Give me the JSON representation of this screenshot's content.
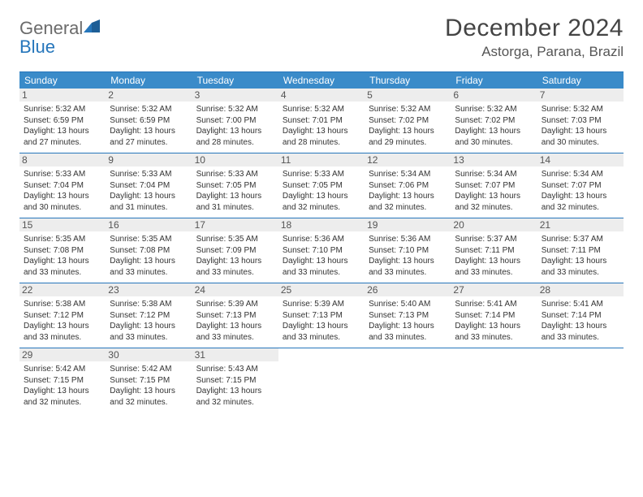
{
  "brand": {
    "word1": "General",
    "word2": "Blue"
  },
  "title": "December 2024",
  "location": "Astorga, Parana, Brazil",
  "colors": {
    "header_bg": "#3a8bc9",
    "border": "#2676bb",
    "daynum_bg": "#ededed",
    "text": "#333333",
    "logo_gray": "#6b6b6b",
    "logo_blue": "#2676bb"
  },
  "weekdays": [
    "Sunday",
    "Monday",
    "Tuesday",
    "Wednesday",
    "Thursday",
    "Friday",
    "Saturday"
  ],
  "weeks": [
    [
      {
        "n": "1",
        "sr": "5:32 AM",
        "ss": "6:59 PM",
        "dl": "13 hours and 27 minutes."
      },
      {
        "n": "2",
        "sr": "5:32 AM",
        "ss": "6:59 PM",
        "dl": "13 hours and 27 minutes."
      },
      {
        "n": "3",
        "sr": "5:32 AM",
        "ss": "7:00 PM",
        "dl": "13 hours and 28 minutes."
      },
      {
        "n": "4",
        "sr": "5:32 AM",
        "ss": "7:01 PM",
        "dl": "13 hours and 28 minutes."
      },
      {
        "n": "5",
        "sr": "5:32 AM",
        "ss": "7:02 PM",
        "dl": "13 hours and 29 minutes."
      },
      {
        "n": "6",
        "sr": "5:32 AM",
        "ss": "7:02 PM",
        "dl": "13 hours and 30 minutes."
      },
      {
        "n": "7",
        "sr": "5:32 AM",
        "ss": "7:03 PM",
        "dl": "13 hours and 30 minutes."
      }
    ],
    [
      {
        "n": "8",
        "sr": "5:33 AM",
        "ss": "7:04 PM",
        "dl": "13 hours and 30 minutes."
      },
      {
        "n": "9",
        "sr": "5:33 AM",
        "ss": "7:04 PM",
        "dl": "13 hours and 31 minutes."
      },
      {
        "n": "10",
        "sr": "5:33 AM",
        "ss": "7:05 PM",
        "dl": "13 hours and 31 minutes."
      },
      {
        "n": "11",
        "sr": "5:33 AM",
        "ss": "7:05 PM",
        "dl": "13 hours and 32 minutes."
      },
      {
        "n": "12",
        "sr": "5:34 AM",
        "ss": "7:06 PM",
        "dl": "13 hours and 32 minutes."
      },
      {
        "n": "13",
        "sr": "5:34 AM",
        "ss": "7:07 PM",
        "dl": "13 hours and 32 minutes."
      },
      {
        "n": "14",
        "sr": "5:34 AM",
        "ss": "7:07 PM",
        "dl": "13 hours and 32 minutes."
      }
    ],
    [
      {
        "n": "15",
        "sr": "5:35 AM",
        "ss": "7:08 PM",
        "dl": "13 hours and 33 minutes."
      },
      {
        "n": "16",
        "sr": "5:35 AM",
        "ss": "7:08 PM",
        "dl": "13 hours and 33 minutes."
      },
      {
        "n": "17",
        "sr": "5:35 AM",
        "ss": "7:09 PM",
        "dl": "13 hours and 33 minutes."
      },
      {
        "n": "18",
        "sr": "5:36 AM",
        "ss": "7:10 PM",
        "dl": "13 hours and 33 minutes."
      },
      {
        "n": "19",
        "sr": "5:36 AM",
        "ss": "7:10 PM",
        "dl": "13 hours and 33 minutes."
      },
      {
        "n": "20",
        "sr": "5:37 AM",
        "ss": "7:11 PM",
        "dl": "13 hours and 33 minutes."
      },
      {
        "n": "21",
        "sr": "5:37 AM",
        "ss": "7:11 PM",
        "dl": "13 hours and 33 minutes."
      }
    ],
    [
      {
        "n": "22",
        "sr": "5:38 AM",
        "ss": "7:12 PM",
        "dl": "13 hours and 33 minutes."
      },
      {
        "n": "23",
        "sr": "5:38 AM",
        "ss": "7:12 PM",
        "dl": "13 hours and 33 minutes."
      },
      {
        "n": "24",
        "sr": "5:39 AM",
        "ss": "7:13 PM",
        "dl": "13 hours and 33 minutes."
      },
      {
        "n": "25",
        "sr": "5:39 AM",
        "ss": "7:13 PM",
        "dl": "13 hours and 33 minutes."
      },
      {
        "n": "26",
        "sr": "5:40 AM",
        "ss": "7:13 PM",
        "dl": "13 hours and 33 minutes."
      },
      {
        "n": "27",
        "sr": "5:41 AM",
        "ss": "7:14 PM",
        "dl": "13 hours and 33 minutes."
      },
      {
        "n": "28",
        "sr": "5:41 AM",
        "ss": "7:14 PM",
        "dl": "13 hours and 33 minutes."
      }
    ],
    [
      {
        "n": "29",
        "sr": "5:42 AM",
        "ss": "7:15 PM",
        "dl": "13 hours and 32 minutes."
      },
      {
        "n": "30",
        "sr": "5:42 AM",
        "ss": "7:15 PM",
        "dl": "13 hours and 32 minutes."
      },
      {
        "n": "31",
        "sr": "5:43 AM",
        "ss": "7:15 PM",
        "dl": "13 hours and 32 minutes."
      },
      null,
      null,
      null,
      null
    ]
  ],
  "labels": {
    "sunrise": "Sunrise:",
    "sunset": "Sunset:",
    "daylight": "Daylight:"
  }
}
